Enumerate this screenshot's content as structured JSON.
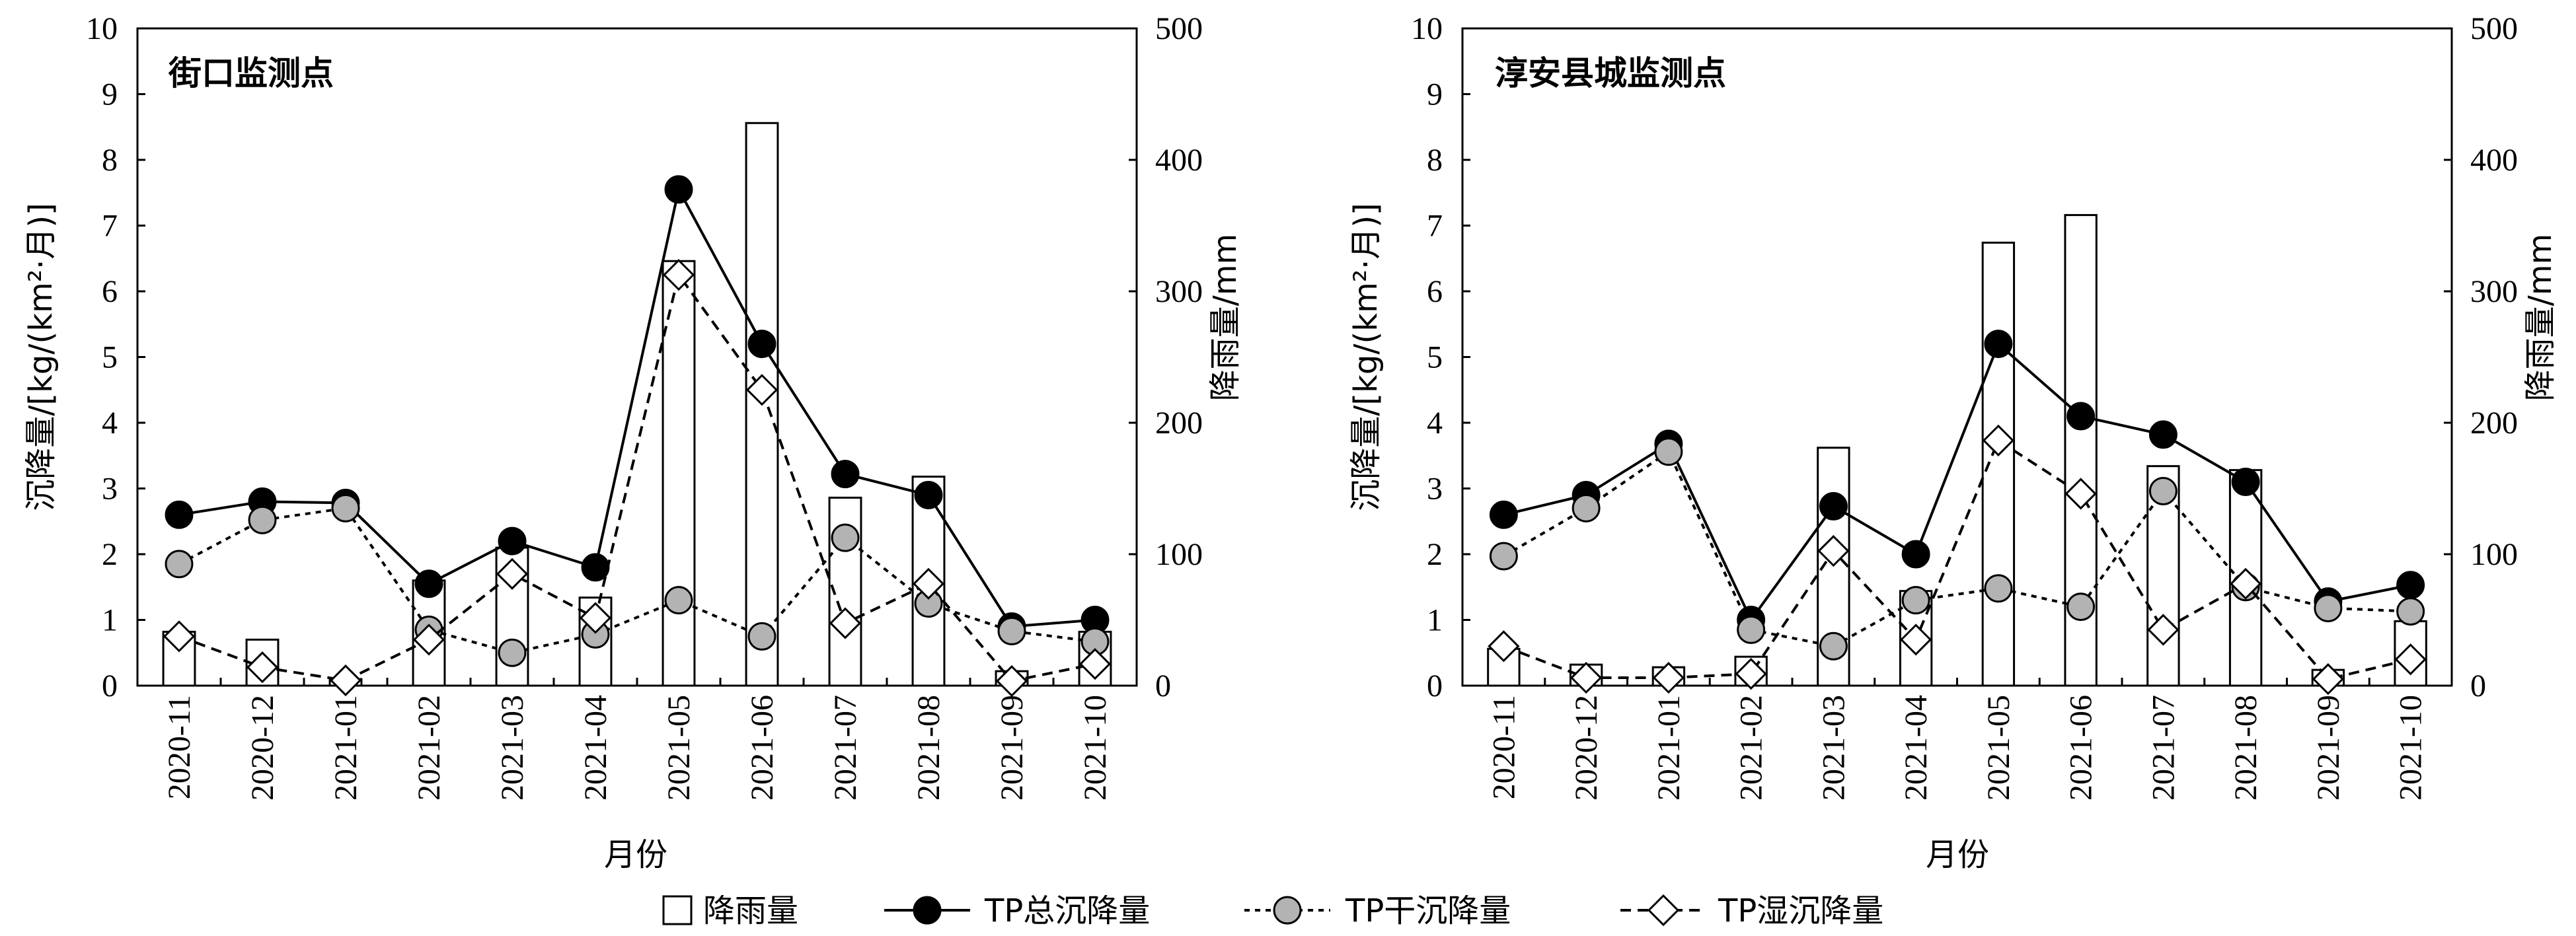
{
  "shared": {
    "xlabel": "月份",
    "ylabel_left": "沉降量/[kg/(km²·月)]",
    "ylabel_right": "降雨量/mm"
  },
  "legend": {
    "rain": "降雨量",
    "total": "TP总沉降量",
    "dry": "TP干沉降量",
    "wet": "TP湿沉降量"
  },
  "chart_data": [
    {
      "type": "bar+line",
      "title": "街口监测点",
      "categories": [
        "2020-11",
        "2020-12",
        "2021-01",
        "2021-02",
        "2021-03",
        "2021-04",
        "2021-05",
        "2021-06",
        "2021-07",
        "2021-08",
        "2021-09",
        "2021-10"
      ],
      "xlabel": "月份",
      "ylabel": "沉降量/[kg/(km²·月)]",
      "ylabel_right": "降雨量/mm",
      "ylim": [
        0,
        10
      ],
      "ylim_right": [
        0,
        500
      ],
      "yticks": [
        0,
        1,
        2,
        3,
        4,
        5,
        6,
        7,
        8,
        9,
        10
      ],
      "yticks_right": [
        0,
        100,
        200,
        300,
        400,
        500
      ],
      "series": [
        {
          "name": "降雨量",
          "kind": "bar",
          "axis": "right",
          "values": [
            41,
            35,
            5,
            80,
            105,
            67,
            323,
            428,
            143,
            159,
            11,
            41
          ]
        },
        {
          "name": "TP总沉降量",
          "kind": "line",
          "values": [
            2.6,
            2.8,
            2.78,
            1.55,
            2.2,
            1.8,
            7.55,
            5.2,
            3.22,
            2.9,
            0.9,
            1.0
          ]
        },
        {
          "name": "TP干沉降量",
          "kind": "line",
          "values": [
            1.85,
            2.52,
            2.7,
            0.85,
            0.5,
            0.78,
            1.3,
            0.75,
            2.25,
            1.25,
            0.83,
            0.67
          ]
        },
        {
          "name": "TP湿沉降量",
          "kind": "line",
          "values": [
            0.75,
            0.28,
            0.08,
            0.7,
            1.7,
            1.03,
            6.25,
            4.5,
            0.95,
            1.55,
            0.07,
            0.33
          ]
        }
      ]
    },
    {
      "type": "bar+line",
      "title": "淳安县城监测点",
      "categories": [
        "2020-11",
        "2020-12",
        "2021-01",
        "2021-02",
        "2021-03",
        "2021-04",
        "2021-05",
        "2021-06",
        "2021-07",
        "2021-08",
        "2021-09",
        "2021-10"
      ],
      "xlabel": "月份",
      "ylabel": "沉降量/[kg/(km²·月)]",
      "ylabel_right": "降雨量/mm",
      "ylim": [
        0,
        10
      ],
      "ylim_right": [
        0,
        500
      ],
      "yticks": [
        0,
        1,
        2,
        3,
        4,
        5,
        6,
        7,
        8,
        9,
        10
      ],
      "yticks_right": [
        0,
        100,
        200,
        300,
        400,
        500
      ],
      "series": [
        {
          "name": "降雨量",
          "kind": "bar",
          "axis": "right",
          "values": [
            28,
            16,
            14,
            22,
            181,
            72,
            337,
            358,
            167,
            164,
            12,
            49
          ]
        },
        {
          "name": "TP总沉降量",
          "kind": "line",
          "values": [
            2.6,
            2.9,
            3.68,
            1.0,
            2.73,
            2.0,
            5.2,
            4.1,
            3.82,
            3.1,
            1.28,
            1.53
          ]
        },
        {
          "name": "TP干沉降量",
          "kind": "line",
          "values": [
            1.97,
            2.7,
            3.56,
            0.85,
            0.6,
            1.3,
            1.48,
            1.2,
            2.96,
            1.5,
            1.18,
            1.13
          ]
        },
        {
          "name": "TP湿沉降量",
          "kind": "line",
          "values": [
            0.6,
            0.12,
            0.12,
            0.18,
            2.05,
            0.7,
            3.73,
            2.92,
            0.85,
            1.55,
            0.1,
            0.4
          ]
        }
      ]
    }
  ]
}
